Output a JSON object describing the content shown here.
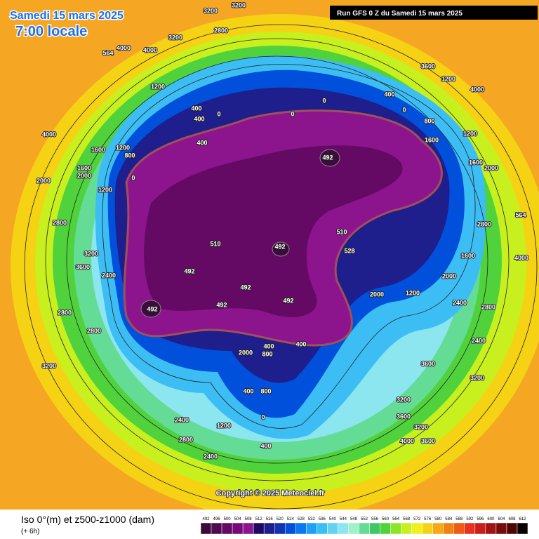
{
  "header": {
    "date": "Samedi 15 mars 2025",
    "time": "7:00 locale",
    "run": "Run GFS 0 Z du Samedi 15 mars 2025"
  },
  "map": {
    "copyright": "Copyright © 2025 Meteociel.fr",
    "contour_labels": [
      "3200",
      "3200",
      "2800",
      "3200",
      "4000",
      "4000",
      "564",
      "1200",
      "400",
      "0",
      "400",
      "400",
      "0",
      "4000",
      "1600",
      "1200",
      "800",
      "0",
      "2000",
      "1600",
      "2000",
      "1200",
      "2800",
      "3200",
      "3600",
      "2400",
      "2800",
      "2800",
      "3200",
      "492",
      "492",
      "492",
      "510",
      "492",
      "492",
      "492",
      "510",
      "528",
      "492",
      "2000",
      "400",
      "800",
      "400",
      "400",
      "800",
      "1200",
      "2400",
      "2800",
      "2400",
      "0",
      "400",
      "0",
      "3600",
      "1200",
      "1600",
      "1200",
      "800",
      "400",
      "0",
      "1200",
      "1600",
      "2000",
      "2400",
      "2800",
      "4000",
      "3600",
      "3200",
      "3200",
      "3600",
      "3200",
      "3600",
      "4000",
      "2400",
      "564",
      "4000",
      "1600",
      "2000",
      "2800",
      "2000"
    ]
  },
  "legend": {
    "title": "Iso 0°(m) et z500-z1000 (dam)",
    "step": "(+ 6h)",
    "scale": [
      492,
      496,
      500,
      504,
      508,
      512,
      516,
      520,
      524,
      528,
      532,
      536,
      540,
      544,
      548,
      552,
      556,
      560,
      564,
      568,
      572,
      576,
      580,
      584,
      588,
      592,
      596,
      600,
      604,
      608,
      612
    ],
    "colors": [
      "#3c0a3c",
      "#500a50",
      "#640a64",
      "#780a78",
      "#8c148c",
      "#1e0a64",
      "#1e1e8c",
      "#1432b4",
      "#0050dc",
      "#0a78f0",
      "#1ea0f5",
      "#3cbef5",
      "#64d2f0",
      "#8ce6f0",
      "#a0f0c8",
      "#64dc96",
      "#3cc864",
      "#50d23c",
      "#8ce628",
      "#c8f01e",
      "#f0f01e",
      "#f5d214",
      "#f5aa14",
      "#f08214",
      "#f05a14",
      "#e6321e",
      "#c81e1e",
      "#a01414",
      "#780a0a",
      "#500505",
      "#0a0000"
    ]
  }
}
